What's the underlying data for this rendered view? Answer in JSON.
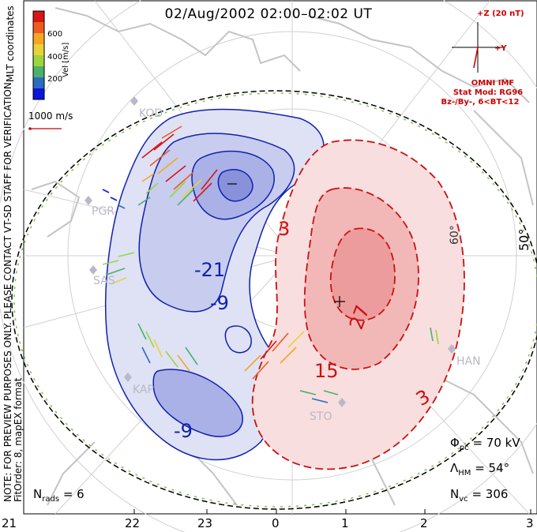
{
  "title": "02/Aug/2002 02:00–02:02 UT",
  "side_note": {
    "line1": "NOTE: FOR PREVIEW PURPOSES ONLY. PLEASE CONTACT VT-SD STAFF FOR VERIFICATION.",
    "line2": "FitOrder: 8, mapEX format"
  },
  "coord_system": "MLT coordinates",
  "colorbar": {
    "label": "Vel [m/s]",
    "ticks": [
      "600",
      "400",
      "200"
    ],
    "colors": [
      "#0a16d8",
      "#2b6cc0",
      "#4bb06a",
      "#9bd63c",
      "#e8d23a",
      "#f5a623",
      "#ee5a1f",
      "#d81414"
    ]
  },
  "velocity_scale": {
    "label": "1000 m/s",
    "color": "#cc0000"
  },
  "imf": {
    "axis_z": "+Z (20 nT)",
    "axis_y": "+Y",
    "source": "OMNI IMF",
    "model": "Stat Mod: RG96",
    "condition": "Bz-/By-, 6<BT<12",
    "color": "#cc0000"
  },
  "latitude_labels": [
    "60°",
    "50°"
  ],
  "stations": [
    "KOD",
    "PGR",
    "SAS",
    "KAP",
    "STO",
    "HAN"
  ],
  "contour_labels": {
    "negative": [
      "-21",
      "-9",
      "-9"
    ],
    "positive": [
      "3",
      "27",
      "15",
      "3"
    ]
  },
  "stats": {
    "phi_symbol": "Φ",
    "phi_sub": "pc",
    "phi_value": "= 70 kV",
    "lambda_symbol": "Λ",
    "lambda_sub": "HM",
    "lambda_value": "= 54°",
    "nvc_symbol": "N",
    "nvc_sub": "vc",
    "nvc_value": "= 306",
    "nrads_symbol": "N",
    "nrads_sub": "rads",
    "nrads_value": "= 6"
  },
  "mlt_ticks": [
    "21",
    "22",
    "23",
    "0",
    "1",
    "2",
    "3"
  ],
  "colors": {
    "neg_fill": "#c8ccee",
    "neg_line": "#1020b0",
    "pos_fill": "#f4c4c4",
    "pos_line": "#cc1010",
    "coast": "#c8c8c8",
    "grid": "#d0d0d0",
    "boundary_green": "#7cc242"
  }
}
